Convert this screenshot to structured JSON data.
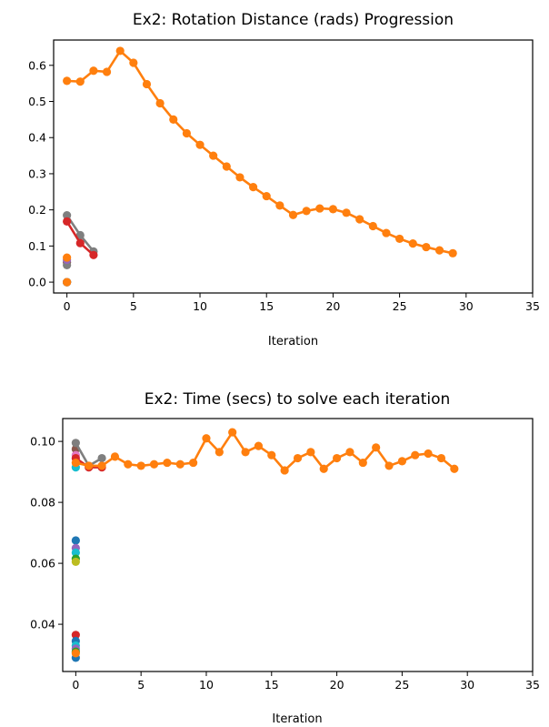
{
  "chart_data": [
    {
      "type": "line",
      "title": "Ex2: Rotation Distance (rads) Progression",
      "xlabel": "Iteration",
      "ylabel": "",
      "xlim": [
        -1,
        35
      ],
      "ylim": [
        -0.03,
        0.67
      ],
      "xticks": [
        0,
        5,
        10,
        15,
        20,
        25,
        30,
        35
      ],
      "yticks": [
        0.0,
        0.1,
        0.2,
        0.3,
        0.4,
        0.5,
        0.6
      ],
      "xtick_labels": [
        "0",
        "5",
        "10",
        "15",
        "20",
        "25",
        "30",
        "35"
      ],
      "ytick_labels": [
        "0.0",
        "0.1",
        "0.2",
        "0.3",
        "0.4",
        "0.5",
        "0.6"
      ],
      "series": [
        {
          "color": "#1f77b4",
          "x": [
            0
          ],
          "y": [
            0.0
          ]
        },
        {
          "color": "#9467bd",
          "x": [
            0
          ],
          "y": [
            0.0
          ]
        },
        {
          "color": "#bcbd22",
          "x": [
            0
          ],
          "y": [
            0.0
          ]
        },
        {
          "color": "#17becf",
          "x": [
            0
          ],
          "y": [
            0.0
          ]
        },
        {
          "color": "#2ca02c",
          "x": [
            0
          ],
          "y": [
            0.0
          ]
        },
        {
          "color": "#e377c2",
          "x": [
            0
          ],
          "y": [
            0.0
          ]
        },
        {
          "color": "#8c564b",
          "x": [
            0
          ],
          "y": [
            0.055
          ]
        },
        {
          "color": "#7f7f7f",
          "x": [
            0
          ],
          "y": [
            0.047
          ]
        },
        {
          "color": "#9467bd",
          "x": [
            0
          ],
          "y": [
            0.062
          ]
        },
        {
          "color": "#ff7f0e",
          "x": [
            0
          ],
          "y": [
            0.068
          ]
        },
        {
          "color": "#7f7f7f",
          "x": [
            0,
            1,
            2
          ],
          "y": [
            0.185,
            0.13,
            0.085
          ]
        },
        {
          "color": "#d62728",
          "x": [
            0,
            1,
            2
          ],
          "y": [
            0.168,
            0.108,
            0.075
          ]
        },
        {
          "color": "#ff7f0e",
          "x": [
            0
          ],
          "y": [
            0.0
          ]
        },
        {
          "color": "#ff7f0e",
          "x": [
            0,
            1,
            2,
            3,
            4,
            5,
            6,
            7,
            8,
            9,
            10,
            11,
            12,
            13,
            14,
            15,
            16,
            17,
            18,
            19,
            20,
            21,
            22,
            23,
            24,
            25,
            26,
            27,
            28,
            29
          ],
          "y": [
            0.557,
            0.555,
            0.585,
            0.582,
            0.64,
            0.607,
            0.548,
            0.495,
            0.45,
            0.412,
            0.38,
            0.35,
            0.32,
            0.29,
            0.263,
            0.238,
            0.212,
            0.186,
            0.197,
            0.204,
            0.202,
            0.192,
            0.174,
            0.155,
            0.136,
            0.12,
            0.107,
            0.097,
            0.088,
            0.08
          ]
        }
      ]
    },
    {
      "type": "line",
      "title": "Ex2: Time (secs) to solve each iteration",
      "xlabel": "Iteration",
      "ylabel": "",
      "xlim": [
        -1,
        35
      ],
      "ylim": [
        0.0245,
        0.1075
      ],
      "xticks": [
        0,
        5,
        10,
        15,
        20,
        25,
        30,
        35
      ],
      "yticks": [
        0.04,
        0.06,
        0.08,
        0.1
      ],
      "xtick_labels": [
        "0",
        "5",
        "10",
        "15",
        "20",
        "25",
        "30",
        "35"
      ],
      "ytick_labels": [
        "0.04",
        "0.06",
        "0.08",
        "0.10"
      ],
      "series": [
        {
          "color": "#1f77b4",
          "x": [
            0
          ],
          "y": [
            0.0675
          ]
        },
        {
          "color": "#9467bd",
          "x": [
            0
          ],
          "y": [
            0.065
          ]
        },
        {
          "color": "#17becf",
          "x": [
            0
          ],
          "y": [
            0.0635
          ]
        },
        {
          "color": "#2ca02c",
          "x": [
            0
          ],
          "y": [
            0.0615
          ]
        },
        {
          "color": "#bcbd22",
          "x": [
            0
          ],
          "y": [
            0.0605
          ]
        },
        {
          "color": "#d62728",
          "x": [
            0
          ],
          "y": [
            0.0365
          ]
        },
        {
          "color": "#1f77b4",
          "x": [
            0
          ],
          "y": [
            0.0345
          ]
        },
        {
          "color": "#17becf",
          "x": [
            0
          ],
          "y": [
            0.033
          ]
        },
        {
          "color": "#9467bd",
          "x": [
            0
          ],
          "y": [
            0.032
          ]
        },
        {
          "color": "#1f77b4",
          "x": [
            0
          ],
          "y": [
            0.029
          ]
        },
        {
          "color": "#2ca02c",
          "x": [
            0
          ],
          "y": [
            0.031
          ]
        },
        {
          "color": "#17becf",
          "x": [
            0
          ],
          "y": [
            0.0915
          ]
        },
        {
          "color": "#8c564b",
          "x": [
            0
          ],
          "y": [
            0.0975
          ]
        },
        {
          "color": "#e377c2",
          "x": [
            0
          ],
          "y": [
            0.0955
          ]
        },
        {
          "color": "#7f7f7f",
          "x": [
            0,
            1,
            2
          ],
          "y": [
            0.0995,
            0.092,
            0.0945
          ]
        },
        {
          "color": "#d62728",
          "x": [
            0,
            1,
            2
          ],
          "y": [
            0.0945,
            0.0915,
            0.0915
          ]
        },
        {
          "color": "#ff7f0e",
          "x": [
            0
          ],
          "y": [
            0.0305
          ]
        },
        {
          "color": "#ff7f0e",
          "x": [
            0,
            1,
            2,
            3,
            4,
            5,
            6,
            7,
            8,
            9,
            10,
            11,
            12,
            13,
            14,
            15,
            16,
            17,
            18,
            19,
            20,
            21,
            22,
            23,
            24,
            25,
            26,
            27,
            28,
            29
          ],
          "y": [
            0.093,
            0.092,
            0.092,
            0.095,
            0.0925,
            0.092,
            0.0925,
            0.093,
            0.0925,
            0.093,
            0.101,
            0.0965,
            0.103,
            0.0965,
            0.0985,
            0.0955,
            0.0905,
            0.0945,
            0.0965,
            0.091,
            0.0945,
            0.0965,
            0.093,
            0.098,
            0.092,
            0.0935,
            0.0955,
            0.096,
            0.0945,
            0.091
          ]
        }
      ]
    }
  ]
}
